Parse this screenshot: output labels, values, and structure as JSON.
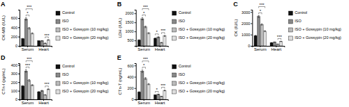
{
  "chart_data": [
    {
      "type": "bar",
      "title": "A",
      "y_label": "CK-MB (IU/L)",
      "categories": [
        "Serum",
        "Heart"
      ],
      "series": [
        {
          "name": "Control",
          "color": "#111111",
          "values": [
            155,
            108
          ],
          "errors": [
            8,
            5
          ]
        },
        {
          "name": "ISO",
          "color": "#888888",
          "values": [
            580,
            108
          ],
          "errors": [
            25,
            5
          ]
        },
        {
          "name": "ISO + Gossypin (10 mg/kg)",
          "color": "#bbbbbb",
          "values": [
            380,
            58
          ],
          "errors": [
            18,
            4
          ]
        },
        {
          "name": "ISO + Gossypin (20 mg/kg)",
          "color": "#dddddd",
          "values": [
            270,
            128
          ],
          "errors": [
            12,
            6
          ]
        }
      ],
      "ylim": [
        0,
        780
      ],
      "yticks": [
        0,
        200,
        400,
        600
      ],
      "grid": false,
      "legend": "right",
      "annotations": [
        {
          "text": "*",
          "category": 0,
          "series": [
            1,
            2
          ]
        },
        {
          "text": "***",
          "category": 0,
          "series": [
            1,
            3
          ]
        },
        {
          "text": "***",
          "category": 1,
          "series": [
            2,
            3
          ]
        }
      ]
    },
    {
      "type": "bar",
      "title": "B",
      "y_label": "LDH (IU/L)",
      "categories": [
        "Serum",
        "Heart"
      ],
      "series": [
        {
          "name": "Control",
          "color": "#111111",
          "values": [
            520,
            620
          ],
          "errors": [
            20,
            25
          ]
        },
        {
          "name": "ISO",
          "color": "#888888",
          "values": [
            1700,
            680
          ],
          "errors": [
            60,
            28
          ]
        },
        {
          "name": "ISO + Gossypin (10 mg/kg)",
          "color": "#bbbbbb",
          "values": [
            1250,
            380
          ],
          "errors": [
            45,
            18
          ]
        },
        {
          "name": "ISO + Gossypin (20 mg/kg)",
          "color": "#dddddd",
          "values": [
            900,
            750
          ],
          "errors": [
            35,
            30
          ]
        }
      ],
      "ylim": [
        200,
        2200
      ],
      "yticks": [
        500,
        1000,
        1500,
        2000
      ],
      "grid": false,
      "legend": "right",
      "annotations": [
        {
          "text": "*",
          "category": 0,
          "series": [
            1,
            2
          ]
        },
        {
          "text": "***",
          "category": 0,
          "series": [
            1,
            3
          ]
        },
        {
          "text": "*",
          "category": 1,
          "series": [
            0,
            1
          ]
        },
        {
          "text": "***",
          "category": 1,
          "series": [
            2,
            3
          ]
        }
      ]
    },
    {
      "type": "bar",
      "title": "C",
      "y_label": "CK (IU/L)",
      "categories": [
        "Serum",
        "Heart"
      ],
      "series": [
        {
          "name": "Control",
          "color": "#111111",
          "values": [
            900,
            280
          ],
          "errors": [
            35,
            12
          ]
        },
        {
          "name": "ISO",
          "color": "#888888",
          "values": [
            2600,
            330
          ],
          "errors": [
            80,
            14
          ]
        },
        {
          "name": "ISO + Gossypin (10 mg/kg)",
          "color": "#bbbbbb",
          "values": [
            1900,
            155
          ],
          "errors": [
            60,
            8
          ]
        },
        {
          "name": "ISO + Gossypin (20 mg/kg)",
          "color": "#dddddd",
          "values": [
            1300,
            390
          ],
          "errors": [
            45,
            16
          ]
        }
      ],
      "ylim": [
        0,
        3200
      ],
      "yticks": [
        0,
        1000,
        2000,
        3000
      ],
      "grid": false,
      "legend": "right",
      "annotations": [
        {
          "text": "*",
          "category": 0,
          "series": [
            1,
            2
          ]
        },
        {
          "text": "***",
          "category": 0,
          "series": [
            1,
            3
          ]
        },
        {
          "text": "***",
          "category": 1,
          "series": [
            2,
            3
          ]
        }
      ]
    },
    {
      "type": "bar",
      "title": "D",
      "y_label": "CTn-I (pg/mL)",
      "categories": [
        "Serum",
        "Heart"
      ],
      "series": [
        {
          "name": "Control",
          "color": "#111111",
          "values": [
            155,
            88
          ],
          "errors": [
            7,
            4
          ]
        },
        {
          "name": "ISO",
          "color": "#888888",
          "values": [
            330,
            100
          ],
          "errors": [
            14,
            5
          ]
        },
        {
          "name": "ISO + Gossypin (10 mg/kg)",
          "color": "#bbbbbb",
          "values": [
            220,
            52
          ],
          "errors": [
            10,
            3
          ]
        },
        {
          "name": "ISO + Gossypin (20 mg/kg)",
          "color": "#dddddd",
          "values": [
            165,
            118
          ],
          "errors": [
            7,
            5
          ]
        }
      ],
      "ylim": [
        0,
        420
      ],
      "yticks": [
        0,
        100,
        200,
        300,
        400
      ],
      "grid": false,
      "legend": "right",
      "annotations": [
        {
          "text": "***",
          "category": 0,
          "series": [
            1,
            2
          ]
        },
        {
          "text": "***",
          "category": 0,
          "series": [
            1,
            3
          ]
        },
        {
          "text": "***",
          "category": 1,
          "series": [
            2,
            3
          ]
        }
      ]
    },
    {
      "type": "bar",
      "title": "E",
      "y_label": "CTn-T (ng/mL)",
      "categories": [
        "Serum",
        "Heart"
      ],
      "series": [
        {
          "name": "Control",
          "color": "#111111",
          "values": [
            130,
            78
          ],
          "errors": [
            6,
            4
          ]
        },
        {
          "name": "ISO",
          "color": "#888888",
          "values": [
            500,
            88
          ],
          "errors": [
            20,
            4
          ]
        },
        {
          "name": "ISO + Gossypin (10 mg/kg)",
          "color": "#bbbbbb",
          "values": [
            370,
            52
          ],
          "errors": [
            15,
            3
          ]
        },
        {
          "name": "ISO + Gossypin (20 mg/kg)",
          "color": "#dddddd",
          "values": [
            270,
            158
          ],
          "errors": [
            11,
            7
          ]
        }
      ],
      "ylim": [
        0,
        640
      ],
      "yticks": [
        0,
        200,
        400,
        600
      ],
      "grid": false,
      "legend": "right",
      "annotations": [
        {
          "text": "*",
          "category": 0,
          "series": [
            1,
            2
          ]
        },
        {
          "text": "***",
          "category": 0,
          "series": [
            1,
            3
          ]
        },
        {
          "text": "*",
          "category": 1,
          "series": [
            0,
            1
          ]
        },
        {
          "text": "***",
          "category": 1,
          "series": [
            2,
            3
          ]
        }
      ]
    }
  ]
}
